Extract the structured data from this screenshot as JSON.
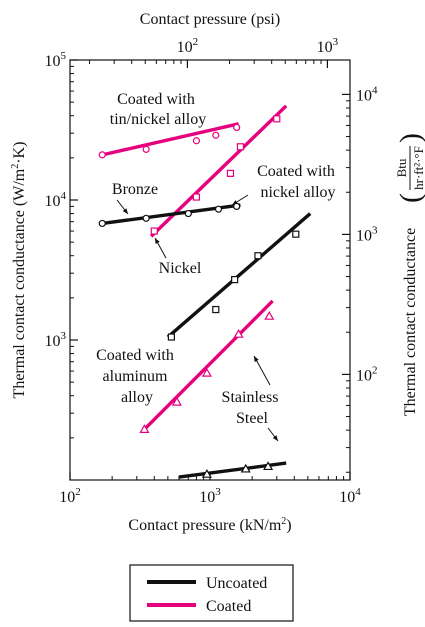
{
  "chart_data": {
    "type": "line",
    "x_axis": {
      "label_main": "Contact pressure (kN/m",
      "label_sup": "2",
      "label_end": ")",
      "scale": "log",
      "range": [
        100,
        10000
      ],
      "ticks": [
        {
          "base": "10",
          "exp": "2",
          "value": 100
        },
        {
          "base": "10",
          "exp": "3",
          "value": 1000
        },
        {
          "base": "10",
          "exp": "4",
          "value": 10000
        }
      ]
    },
    "x_axis_top": {
      "label": "Contact pressure (psi)",
      "scale": "log",
      "ticks": [
        {
          "base": "10",
          "exp": "2",
          "value": 100
        },
        {
          "base": "10",
          "exp": "3",
          "value": 1000
        }
      ]
    },
    "y_axis": {
      "label_main": "Thermal contact conductance (W/m",
      "label_sup": "2",
      "label_end": "·K)",
      "scale": "log",
      "range": [
        100,
        100000
      ],
      "ticks": [
        {
          "base": "10",
          "exp": "3",
          "value": 1000
        },
        {
          "base": "10",
          "exp": "4",
          "value": 10000
        },
        {
          "base": "10",
          "exp": "5",
          "value": 100000
        }
      ]
    },
    "y_axis_right": {
      "label_prefix": "Thermal contact conductance",
      "frac_num": "Btu",
      "frac_den": "hr·ft²·°F",
      "scale": "log",
      "ticks": [
        {
          "base": "10",
          "exp": "2",
          "value": 100
        },
        {
          "base": "10",
          "exp": "3",
          "value": 1000
        },
        {
          "base": "10",
          "exp": "4",
          "value": 10000
        }
      ]
    },
    "series": [
      {
        "name": "Coated with tin/nickel alloy",
        "coated": true,
        "marker": "circle",
        "line": [
          [
            170,
            21000
          ],
          [
            1600,
            35000
          ]
        ],
        "points": [
          [
            170,
            21000
          ],
          [
            350,
            23000
          ],
          [
            800,
            26500
          ],
          [
            1100,
            29000
          ],
          [
            1550,
            33000
          ]
        ]
      },
      {
        "name": "Coated with nickel alloy",
        "coated": true,
        "marker": "square",
        "line": [
          [
            380,
            5500
          ],
          [
            3500,
            47000
          ]
        ],
        "points": [
          [
            400,
            6000
          ],
          [
            800,
            10500
          ],
          [
            1400,
            15500
          ],
          [
            1650,
            24000
          ],
          [
            3000,
            38000
          ]
        ]
      },
      {
        "name": "Bronze",
        "coated": false,
        "marker": "circle",
        "line": [
          [
            170,
            6800
          ],
          [
            1650,
            9200
          ]
        ],
        "points": [
          [
            170,
            6800
          ],
          [
            350,
            7400
          ],
          [
            700,
            8000
          ],
          [
            1150,
            8600
          ],
          [
            1550,
            9000
          ]
        ]
      },
      {
        "name": "Nickel",
        "coated": false,
        "marker": "square",
        "line": [
          [
            500,
            1050
          ],
          [
            5200,
            8000
          ]
        ],
        "points": [
          [
            530,
            1050
          ],
          [
            1100,
            1650
          ],
          [
            1500,
            2700
          ],
          [
            2200,
            4000
          ],
          [
            4100,
            5700
          ]
        ]
      },
      {
        "name": "Coated with aluminum alloy",
        "coated": true,
        "marker": "triangle",
        "line": [
          [
            340,
            230
          ],
          [
            2800,
            1900
          ]
        ],
        "points": [
          [
            340,
            230
          ],
          [
            580,
            360
          ],
          [
            950,
            580
          ],
          [
            1600,
            1100
          ],
          [
            2650,
            1480
          ]
        ]
      },
      {
        "name": "Stainless Steel",
        "coated": false,
        "marker": "triangle",
        "line": [
          [
            600,
            105
          ],
          [
            3500,
            132
          ]
        ],
        "points": [
          [
            950,
            110
          ],
          [
            1800,
            120
          ],
          [
            2600,
            125
          ]
        ]
      }
    ],
    "annotations": [
      {
        "lines": [
          "Coated with",
          "tin/nickel alloy"
        ]
      },
      {
        "lines": [
          "Bronze"
        ]
      },
      {
        "lines": [
          "Coated with",
          "nickel alloy"
        ]
      },
      {
        "lines": [
          "Nickel"
        ]
      },
      {
        "lines": [
          "Coated with",
          "aluminum",
          "alloy"
        ]
      },
      {
        "lines": [
          "Stainless",
          "Steel"
        ]
      }
    ],
    "legend": {
      "position": "bottom",
      "items": [
        {
          "label": "Uncoated",
          "color": "#111111"
        },
        {
          "label": "Coated",
          "color": "#e6007e"
        }
      ]
    },
    "colors": {
      "uncoated": "#111111",
      "coated": "#e6007e"
    }
  }
}
